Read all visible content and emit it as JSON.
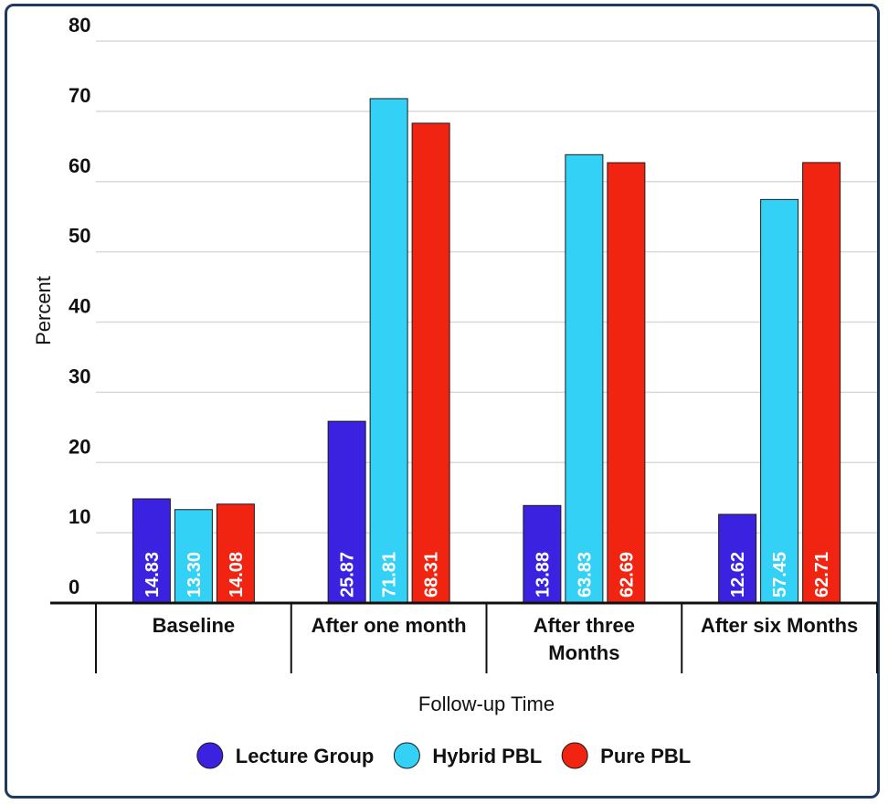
{
  "chart_data": {
    "type": "bar",
    "categories": [
      [
        "Baseline"
      ],
      [
        "After one month"
      ],
      [
        "After three",
        "Months"
      ],
      [
        "After six Months"
      ]
    ],
    "series": [
      {
        "name": "Lecture Group",
        "color": "#3a22e0",
        "values": [
          14.83,
          25.87,
          13.88,
          12.62
        ],
        "labels": [
          "14.83",
          "25.87",
          "13.88",
          "12.62"
        ]
      },
      {
        "name": "Hybrid PBL",
        "color": "#33d1f5",
        "values": [
          13.3,
          71.81,
          63.83,
          57.45
        ],
        "labels": [
          "13.30",
          "71.81",
          "63.83",
          "57.45"
        ]
      },
      {
        "name": "Pure PBL",
        "color": "#f02410",
        "values": [
          14.08,
          68.31,
          62.69,
          62.71
        ],
        "labels": [
          "14.08",
          "68.31",
          "62.69",
          "62.71"
        ]
      }
    ],
    "yticks": [
      "0",
      "10",
      "20",
      "30",
      "40",
      "50",
      "60",
      "70",
      "80"
    ],
    "ylim": [
      0,
      80
    ],
    "xlabel": "Follow-up Time",
    "ylabel": "Percent",
    "grid": true,
    "legend_position": "bottom"
  }
}
